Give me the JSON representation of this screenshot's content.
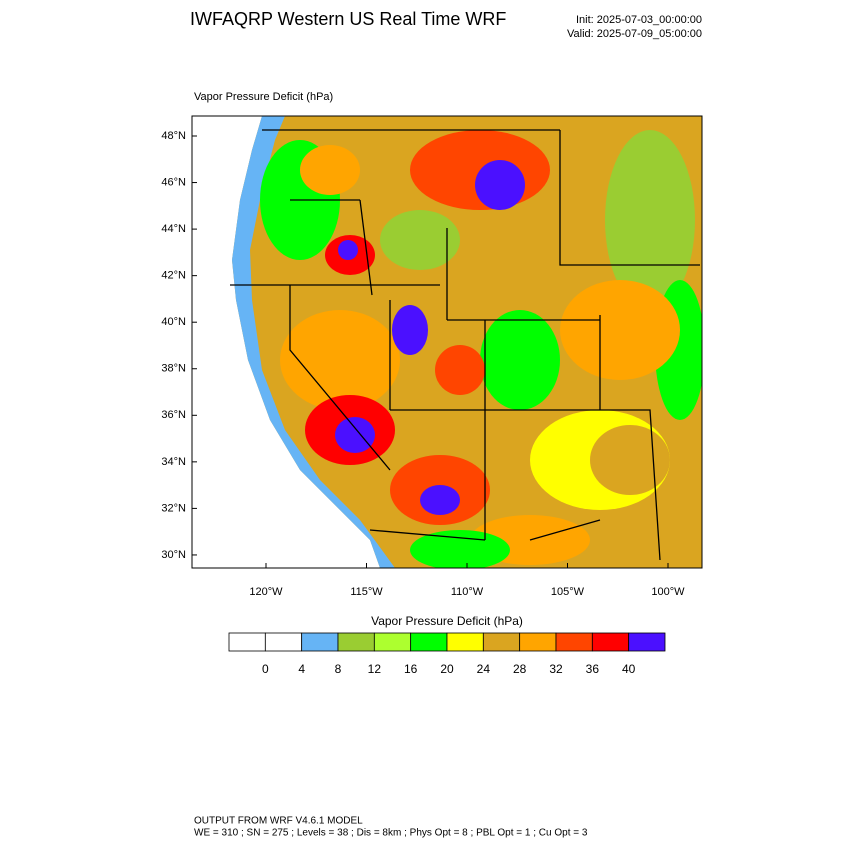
{
  "header": {
    "title": "IWFAQRP Western US Real Time WRF",
    "init": "Init: 2025-07-03_00:00:00",
    "valid": "Valid: 2025-07-09_05:00:00"
  },
  "map": {
    "field_label": "Vapor Pressure Deficit   (hPa)",
    "lat_labels": [
      "48°N",
      "46°N",
      "44°N",
      "42°N",
      "40°N",
      "38°N",
      "36°N",
      "34°N",
      "32°N",
      "30°N"
    ],
    "lon_labels": [
      "120°W",
      "115°W",
      "110°W",
      "105°W",
      "100°W"
    ]
  },
  "colorbar": {
    "title": "Vapor Pressure Deficit  (hPa)",
    "colors": [
      "#ffffff",
      "#ffffff",
      "#66b4f5",
      "#9acd32",
      "#adff2f",
      "#00ff00",
      "#ffff00",
      "#daa520",
      "#ffa500",
      "#ff4500",
      "#ff0000",
      "#4b10ff"
    ],
    "levels": [
      "0",
      "4",
      "8",
      "12",
      "16",
      "20",
      "24",
      "28",
      "32",
      "36",
      "40"
    ]
  },
  "footer": {
    "line1": "OUTPUT FROM WRF V4.6.1 MODEL",
    "line2": "WE = 310 ; SN = 275 ; Levels = 38 ; Dis = 8km ; Phys Opt = 8 ; PBL Opt = 1 ; Cu Opt = 3"
  }
}
